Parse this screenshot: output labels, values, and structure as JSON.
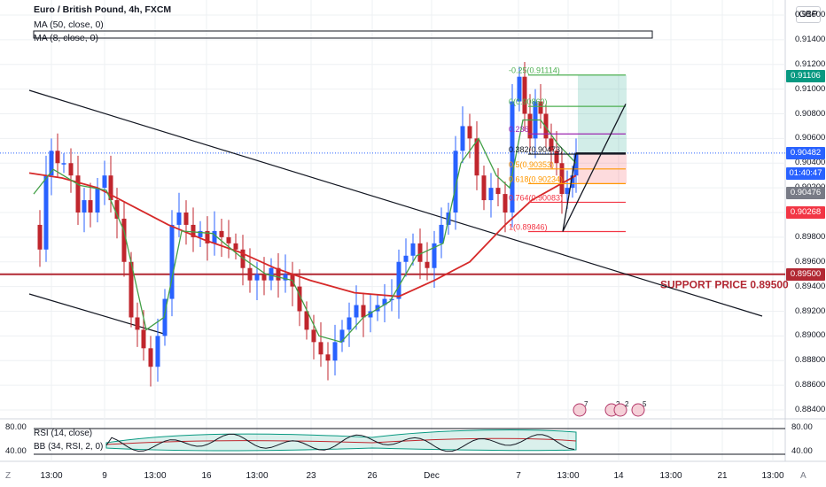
{
  "header": {
    "symbol_title": "Euro / British Pound, 4h, FXCM",
    "ma50_label": "MA (50, close, 0)",
    "ma8_label": "MA (8, close, 0)",
    "currency": "GBP"
  },
  "price_axis": {
    "labels": [
      "0.91600",
      "0.91400",
      "0.91200",
      "0.91000",
      "0.90800",
      "0.90600",
      "0.90400",
      "0.90200",
      "0.90000",
      "0.89800",
      "0.89600",
      "0.89400",
      "0.89200",
      "0.89000",
      "0.88800",
      "0.88600",
      "0.88400"
    ],
    "label_values": [
      0.916,
      0.914,
      0.912,
      0.91,
      0.908,
      0.906,
      0.904,
      0.902,
      0.9,
      0.898,
      0.896,
      0.894,
      0.892,
      0.89,
      0.888,
      0.886,
      0.884
    ],
    "tags": [
      {
        "text": "0.91106",
        "value": 0.91106,
        "color": "#089981"
      },
      {
        "text": "0.90482",
        "value": 0.90482,
        "color": "#2962ff"
      },
      {
        "text": "01:40:47",
        "value": 0.90317,
        "color": "#2962ff"
      },
      {
        "text": "0.90476",
        "value": 0.90156,
        "color": "#787b86"
      },
      {
        "text": "0.90268",
        "value": 0.9,
        "color": "#f23645"
      },
      {
        "text": "0.89500",
        "value": 0.895,
        "color": "#b22833"
      }
    ]
  },
  "time_axis": {
    "labels": [
      "13:00",
      "9",
      "13:00",
      "16",
      "13:00",
      "23",
      "26",
      "Dec",
      "7",
      "13:00",
      "14",
      "13:00",
      "21",
      "13:00"
    ],
    "positions_note": "",
    "corner_left": "Z",
    "corner_right": "A"
  },
  "fib_levels": [
    {
      "label": "-0.25(0.91114)",
      "value": 0.91114,
      "color": "#4caf50"
    },
    {
      "label": "0(0.90860)",
      "value": 0.9086,
      "color": "#4caf50"
    },
    {
      "label": "0.236",
      "value": 0.90637,
      "color": "#9c27b0"
    },
    {
      "label": "0.382(0.90473)",
      "value": 0.90473,
      "color": "#131722"
    },
    {
      "label": "0.5(0.90353)",
      "value": 0.90353,
      "color": "#ff9800"
    },
    {
      "label": "0.618(0.90234)",
      "value": 0.90234,
      "color": "#ff9800"
    },
    {
      "label": "0.764(0.90083)",
      "value": 0.90083,
      "color": "#f23645"
    },
    {
      "label": "1(0.89846)",
      "value": 0.89846,
      "color": "#f23645"
    }
  ],
  "support": {
    "label": "SUPPORT PRICE 0.89500",
    "value": 0.895,
    "color": "#b22833"
  },
  "indicator": {
    "rsi_label": "RSI (14, close)",
    "bb_label": "BB (34, RSI, 2, 0)",
    "axis_labels": [
      "80.00",
      "40.00"
    ],
    "axis_values": [
      80,
      40
    ]
  },
  "event_icons": [
    {
      "badge": "7"
    },
    {
      "badge": "2"
    },
    {
      "badge": "2"
    },
    {
      "badge": "5"
    }
  ],
  "colors": {
    "up": "#2962ff",
    "down": "#c0262d",
    "ma50": "#d62929",
    "ma8": "#43a047",
    "grid": "#eef0f3"
  }
}
